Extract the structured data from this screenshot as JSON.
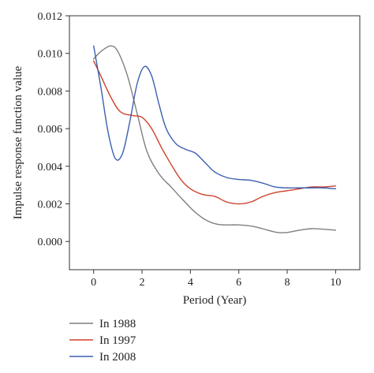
{
  "chart_data": {
    "type": "line",
    "title": "",
    "xlabel": "Period (Year)",
    "ylabel": "Impulse response function value",
    "xlim": [
      -1,
      11
    ],
    "ylim": [
      -0.0015,
      0.012
    ],
    "xticks": [
      0,
      2,
      4,
      6,
      8,
      10
    ],
    "xtick_labels": [
      "0",
      "2",
      "4",
      "6",
      "8",
      "10"
    ],
    "yticks": [
      0.0,
      0.002,
      0.004,
      0.006,
      0.008,
      0.01,
      0.012
    ],
    "ytick_labels": [
      "0.000",
      "0.002",
      "0.004",
      "0.006",
      "0.008",
      "0.010",
      "0.012"
    ],
    "grid": false,
    "legend_position": "bottom-left, below plot",
    "series": [
      {
        "name": "In 1988",
        "color": "#7f7f7f",
        "x": [
          0,
          0.3,
          0.7,
          1.0,
          1.4,
          1.8,
          2.2,
          2.7,
          3.2,
          3.7,
          4.2,
          4.7,
          5.2,
          6.0,
          6.6,
          7.2,
          7.6,
          8.0,
          8.5,
          9.0,
          9.5,
          10.0
        ],
        "y": [
          0.0097,
          0.0101,
          0.0104,
          0.0101,
          0.0088,
          0.0068,
          0.0048,
          0.0036,
          0.0029,
          0.0022,
          0.00155,
          0.0011,
          0.0009,
          0.00088,
          0.0008,
          0.0006,
          0.00048,
          0.00048,
          0.0006,
          0.00068,
          0.00065,
          0.0006
        ]
      },
      {
        "name": "In 1997",
        "color": "#d0412c",
        "x": [
          0,
          0.3,
          0.7,
          1.1,
          1.6,
          2.0,
          2.4,
          2.8,
          3.2,
          3.6,
          4.0,
          4.5,
          5.0,
          5.5,
          6.0,
          6.5,
          7.0,
          7.5,
          8.0,
          8.5,
          9.0,
          9.5,
          10.0
        ],
        "y": [
          0.0096,
          0.0088,
          0.0077,
          0.0069,
          0.0067,
          0.0066,
          0.006,
          0.005,
          0.0041,
          0.0033,
          0.0028,
          0.0025,
          0.0024,
          0.0021,
          0.002,
          0.0021,
          0.0024,
          0.0026,
          0.0027,
          0.0028,
          0.0029,
          0.0029,
          0.00295
        ]
      },
      {
        "name": "In 2008",
        "color": "#3b5fb0",
        "x": [
          0,
          0.3,
          0.6,
          0.9,
          1.2,
          1.5,
          1.8,
          2.1,
          2.4,
          2.7,
          3.0,
          3.4,
          3.8,
          4.2,
          4.6,
          5.0,
          5.5,
          6.0,
          6.5,
          7.0,
          7.5,
          8.0,
          8.5,
          9.0,
          9.5,
          10.0
        ],
        "y": [
          0.0104,
          0.0082,
          0.0058,
          0.0044,
          0.0047,
          0.0064,
          0.0084,
          0.0093,
          0.0088,
          0.0073,
          0.006,
          0.0052,
          0.0049,
          0.0047,
          0.0042,
          0.0037,
          0.0034,
          0.0033,
          0.00325,
          0.0031,
          0.0029,
          0.00285,
          0.00285,
          0.00285,
          0.00285,
          0.0028
        ]
      }
    ]
  }
}
